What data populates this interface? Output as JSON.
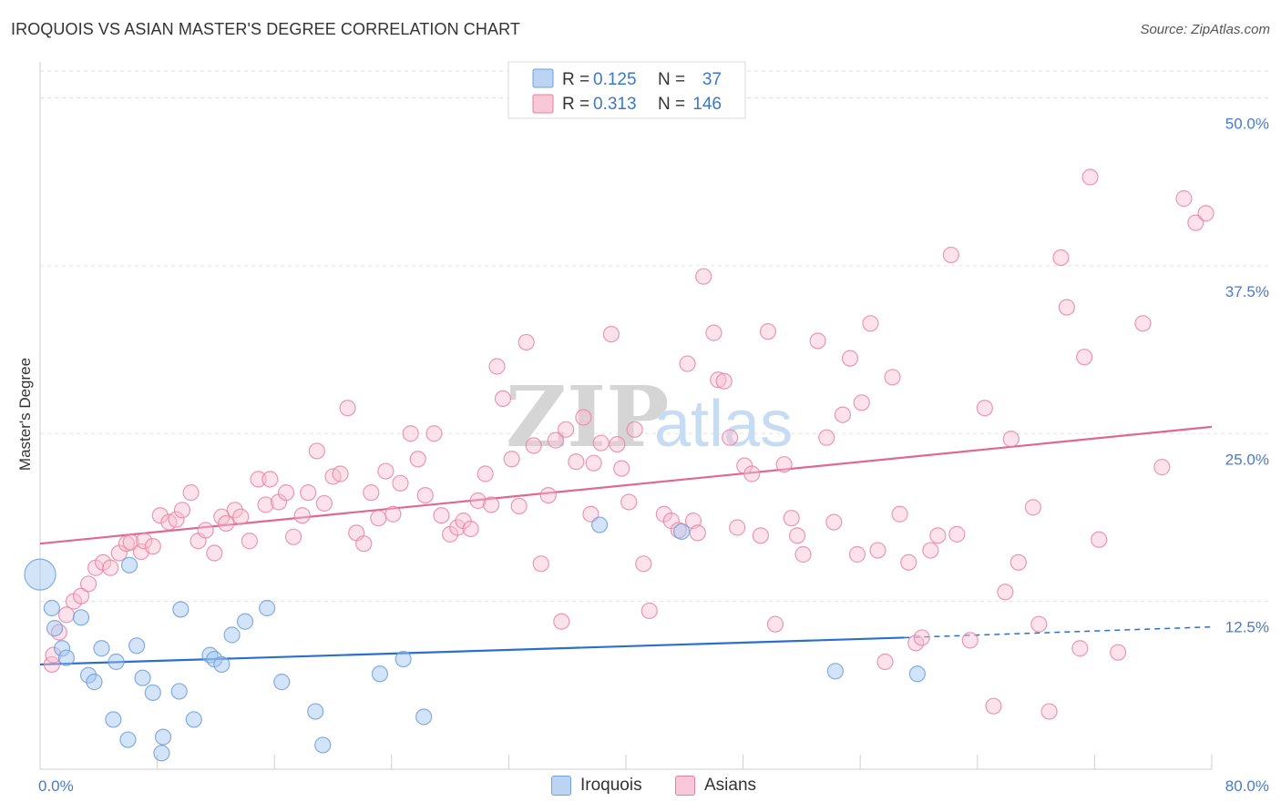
{
  "title": "IROQUOIS VS ASIAN MASTER'S DEGREE CORRELATION CHART",
  "source": "Source: ZipAtlas.com",
  "watermark": {
    "zip": "ZIP",
    "atlas": "atlas"
  },
  "colors": {
    "iroquois": "#6fa0dc",
    "iroquois_fill": "rgba(160,196,240,0.45)",
    "iroquois_line": "#2a6fce",
    "asians": "#e87fa1",
    "asians_fill": "rgba(248,190,208,0.45)",
    "asians_line": "#e06792",
    "tick": "#4a7bc8"
  },
  "legend": {
    "iroquois": {
      "r_label": "R =",
      "r_value": "0.125",
      "n_label": "N =",
      "n_value": "37"
    },
    "asians": {
      "r_label": "R =",
      "r_value": "0.313",
      "n_label": "N =",
      "n_value": "146"
    }
  },
  "bottom_legend": {
    "iroquois": "Iroquois",
    "asians": "Asians"
  },
  "chart_data": {
    "type": "scatter",
    "ylabel": "Master's Degree",
    "xlabel": "",
    "xlim": [
      0,
      80
    ],
    "ylim": [
      0,
      52
    ],
    "x_tick_labels": {
      "min": "0.0%",
      "max": "80.0%"
    },
    "y_ticks": [
      {
        "value": 12.5,
        "label": "12.5%"
      },
      {
        "value": 25.0,
        "label": "25.0%"
      },
      {
        "value": 37.5,
        "label": "37.5%"
      },
      {
        "value": 50.0,
        "label": "50.0%"
      }
    ],
    "grid": true,
    "legend_placement": "top-center",
    "series": [
      {
        "name": "Iroquois",
        "trend": {
          "x0": 0,
          "y0": 7.8,
          "x1": 59,
          "y1": 9.8,
          "dash_x1": 80,
          "dash_y1": 10.6
        },
        "points": [
          [
            0.0,
            14.5
          ],
          [
            0.8,
            12.0
          ],
          [
            1.0,
            10.5
          ],
          [
            1.5,
            9.0
          ],
          [
            1.8,
            8.3
          ],
          [
            2.8,
            11.3
          ],
          [
            3.3,
            7.0
          ],
          [
            3.7,
            6.5
          ],
          [
            4.2,
            9.0
          ],
          [
            5.0,
            3.7
          ],
          [
            5.2,
            8.0
          ],
          [
            6.0,
            2.2
          ],
          [
            6.1,
            15.2
          ],
          [
            6.6,
            9.2
          ],
          [
            7.0,
            6.8
          ],
          [
            7.7,
            5.7
          ],
          [
            8.3,
            1.2
          ],
          [
            8.4,
            2.4
          ],
          [
            9.5,
            5.8
          ],
          [
            9.6,
            11.9
          ],
          [
            10.5,
            3.7
          ],
          [
            11.6,
            8.5
          ],
          [
            11.9,
            8.2
          ],
          [
            12.4,
            7.8
          ],
          [
            13.1,
            10.0
          ],
          [
            14.0,
            11.0
          ],
          [
            15.5,
            12.0
          ],
          [
            16.5,
            6.5
          ],
          [
            18.8,
            4.3
          ],
          [
            19.3,
            1.8
          ],
          [
            23.2,
            7.1
          ],
          [
            24.8,
            8.2
          ],
          [
            26.2,
            3.9
          ],
          [
            38.2,
            18.2
          ],
          [
            43.8,
            17.7
          ],
          [
            54.3,
            7.3
          ],
          [
            59.9,
            7.1
          ]
        ],
        "sizes": {
          "0": 34
        }
      },
      {
        "name": "Asians",
        "trend": {
          "x0": 0,
          "y0": 16.8,
          "x1": 80,
          "y1": 25.5
        },
        "points": [
          [
            0.8,
            7.8
          ],
          [
            0.9,
            8.5
          ],
          [
            1.3,
            10.2
          ],
          [
            1.8,
            11.5
          ],
          [
            2.3,
            12.5
          ],
          [
            2.8,
            12.9
          ],
          [
            3.3,
            13.8
          ],
          [
            3.8,
            15.0
          ],
          [
            4.3,
            15.4
          ],
          [
            4.8,
            15.0
          ],
          [
            5.4,
            16.1
          ],
          [
            5.9,
            16.8
          ],
          [
            6.2,
            16.9
          ],
          [
            6.9,
            16.2
          ],
          [
            7.1,
            17.0
          ],
          [
            7.7,
            16.6
          ],
          [
            8.2,
            18.9
          ],
          [
            8.8,
            18.4
          ],
          [
            9.3,
            18.6
          ],
          [
            9.7,
            19.3
          ],
          [
            10.3,
            20.6
          ],
          [
            10.8,
            17.0
          ],
          [
            11.3,
            17.8
          ],
          [
            11.9,
            16.1
          ],
          [
            12.4,
            18.8
          ],
          [
            12.7,
            18.3
          ],
          [
            13.3,
            19.3
          ],
          [
            13.7,
            18.8
          ],
          [
            14.3,
            17.0
          ],
          [
            14.9,
            21.6
          ],
          [
            15.4,
            19.7
          ],
          [
            15.7,
            21.6
          ],
          [
            16.3,
            19.9
          ],
          [
            16.8,
            20.6
          ],
          [
            17.3,
            17.3
          ],
          [
            17.9,
            18.9
          ],
          [
            18.3,
            20.6
          ],
          [
            18.9,
            23.7
          ],
          [
            19.4,
            19.8
          ],
          [
            20.0,
            21.8
          ],
          [
            20.5,
            22.0
          ],
          [
            21.0,
            26.9
          ],
          [
            21.6,
            17.6
          ],
          [
            22.1,
            16.8
          ],
          [
            22.6,
            20.6
          ],
          [
            23.1,
            18.7
          ],
          [
            23.6,
            22.2
          ],
          [
            24.1,
            19.0
          ],
          [
            24.6,
            21.3
          ],
          [
            25.3,
            25.0
          ],
          [
            25.8,
            23.1
          ],
          [
            26.3,
            20.4
          ],
          [
            26.9,
            25.0
          ],
          [
            27.4,
            18.9
          ],
          [
            28.0,
            17.5
          ],
          [
            28.5,
            18.0
          ],
          [
            28.9,
            18.5
          ],
          [
            29.4,
            17.9
          ],
          [
            29.9,
            20.0
          ],
          [
            30.4,
            22.0
          ],
          [
            30.8,
            19.7
          ],
          [
            31.2,
            30.0
          ],
          [
            31.6,
            27.6
          ],
          [
            32.2,
            23.1
          ],
          [
            32.7,
            19.6
          ],
          [
            33.2,
            31.8
          ],
          [
            33.7,
            24.1
          ],
          [
            34.2,
            15.3
          ],
          [
            34.7,
            20.4
          ],
          [
            35.2,
            24.5
          ],
          [
            35.6,
            11.0
          ],
          [
            35.9,
            25.3
          ],
          [
            36.6,
            22.9
          ],
          [
            37.1,
            26.2
          ],
          [
            37.6,
            19.0
          ],
          [
            37.8,
            22.8
          ],
          [
            38.3,
            24.3
          ],
          [
            39.0,
            32.4
          ],
          [
            39.4,
            24.2
          ],
          [
            39.7,
            22.4
          ],
          [
            40.2,
            19.9
          ],
          [
            40.6,
            25.3
          ],
          [
            41.2,
            15.3
          ],
          [
            41.6,
            11.8
          ],
          [
            42.6,
            19.0
          ],
          [
            43.1,
            18.5
          ],
          [
            43.6,
            17.8
          ],
          [
            44.2,
            30.2
          ],
          [
            44.6,
            18.5
          ],
          [
            44.9,
            17.6
          ],
          [
            45.3,
            36.7
          ],
          [
            46.0,
            32.5
          ],
          [
            46.3,
            29.0
          ],
          [
            46.7,
            28.9
          ],
          [
            47.1,
            24.7
          ],
          [
            47.6,
            18.0
          ],
          [
            48.1,
            22.6
          ],
          [
            48.6,
            22.0
          ],
          [
            49.2,
            17.4
          ],
          [
            49.7,
            32.6
          ],
          [
            50.2,
            10.8
          ],
          [
            50.8,
            22.7
          ],
          [
            51.3,
            18.7
          ],
          [
            51.7,
            17.4
          ],
          [
            52.1,
            16.0
          ],
          [
            53.1,
            31.9
          ],
          [
            53.7,
            24.7
          ],
          [
            54.2,
            18.4
          ],
          [
            54.8,
            26.4
          ],
          [
            55.3,
            30.6
          ],
          [
            55.8,
            16.0
          ],
          [
            56.1,
            27.3
          ],
          [
            56.7,
            33.2
          ],
          [
            57.2,
            16.3
          ],
          [
            57.7,
            8.0
          ],
          [
            58.2,
            29.2
          ],
          [
            58.7,
            19.0
          ],
          [
            59.3,
            15.4
          ],
          [
            59.8,
            9.4
          ],
          [
            60.2,
            9.8
          ],
          [
            60.8,
            16.3
          ],
          [
            61.3,
            17.4
          ],
          [
            62.2,
            38.3
          ],
          [
            62.6,
            17.5
          ],
          [
            63.5,
            9.6
          ],
          [
            64.5,
            26.9
          ],
          [
            65.1,
            4.7
          ],
          [
            65.9,
            13.2
          ],
          [
            66.3,
            24.6
          ],
          [
            66.8,
            15.4
          ],
          [
            67.8,
            19.5
          ],
          [
            68.2,
            10.8
          ],
          [
            68.9,
            4.3
          ],
          [
            69.7,
            38.1
          ],
          [
            70.1,
            34.4
          ],
          [
            71.0,
            9.0
          ],
          [
            71.3,
            30.7
          ],
          [
            71.7,
            44.1
          ],
          [
            72.3,
            17.1
          ],
          [
            73.6,
            8.7
          ],
          [
            75.3,
            33.2
          ],
          [
            76.6,
            22.5
          ],
          [
            78.1,
            42.5
          ],
          [
            78.9,
            40.7
          ],
          [
            79.6,
            41.4
          ]
        ]
      }
    ]
  }
}
